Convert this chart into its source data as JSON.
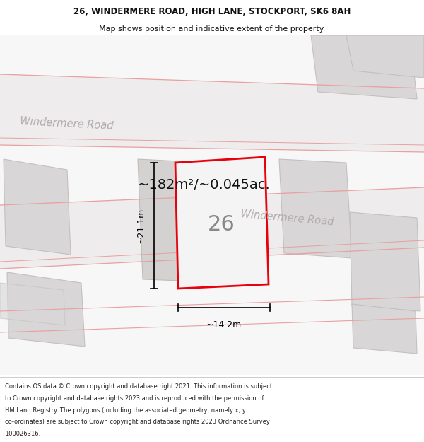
{
  "title_line1": "26, WINDERMERE ROAD, HIGH LANE, STOCKPORT, SK6 8AH",
  "title_line2": "Map shows position and indicative extent of the property.",
  "area_text": "~182m²/~0.045ac.",
  "label_26": "26",
  "dim_height": "~21.1m",
  "dim_width": "~14.2m",
  "road_label_top": "Windermere Road",
  "road_label_diag": "Windermere Road",
  "footer_lines": [
    "Contains OS data © Crown copyright and database right 2021. This information is subject",
    "to Crown copyright and database rights 2023 and is reproduced with the permission of",
    "HM Land Registry. The polygons (including the associated geometry, namely x, y",
    "co-ordinates) are subject to Crown copyright and database rights 2023 Ordnance Survey",
    "100026316."
  ],
  "bg_color": "#f7f7f7",
  "road_fill": "#eeecec",
  "building_fill": "#d8d6d6",
  "building_edge": "#c5c0c0",
  "plot_edge_color": "#e8000a",
  "plot_fill": "#f5f4f4",
  "road_line_color": "#e8a0a0",
  "road_text_color": "#b0aaaa",
  "dim_color": "#000000",
  "title_color": "#111111",
  "area_text_color": "#111111",
  "label_color": "#888888",
  "footer_color": "#222222"
}
